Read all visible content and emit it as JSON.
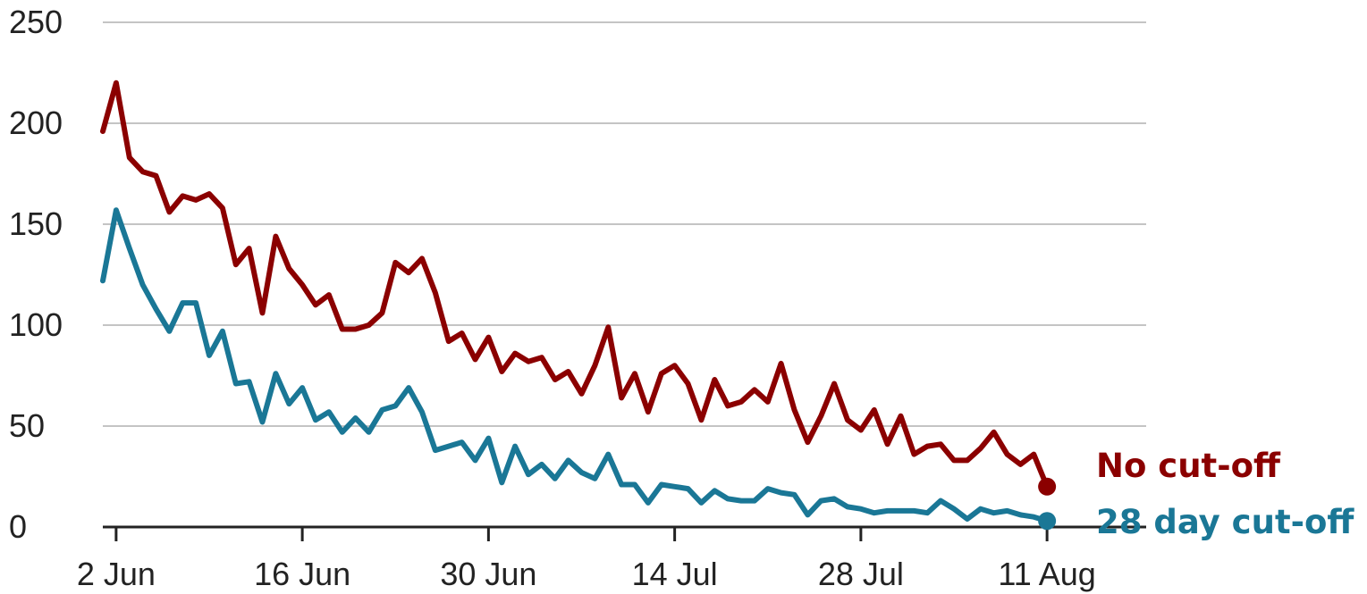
{
  "chart_data": {
    "type": "line",
    "title": "",
    "xlabel": "",
    "ylabel": "",
    "ylim": [
      0,
      250
    ],
    "yticks": [
      0,
      50,
      100,
      150,
      200,
      250
    ],
    "xticks": [
      {
        "label": "2 Jun",
        "x": 1
      },
      {
        "label": "16 Jun",
        "x": 15
      },
      {
        "label": "30 Jun",
        "x": 29
      },
      {
        "label": "14 Jul",
        "x": 43
      },
      {
        "label": "28 Jul",
        "x": 57
      },
      {
        "label": "11 Aug",
        "x": 71
      }
    ],
    "x_start_date": "1 Jun",
    "grid": true,
    "legend": "end-of-line labels",
    "series": [
      {
        "name": "No cut-off",
        "color": "#8b0000",
        "values": [
          196,
          220,
          183,
          176,
          174,
          156,
          164,
          162,
          165,
          158,
          130,
          138,
          106,
          144,
          128,
          120,
          110,
          115,
          98,
          98,
          100,
          106,
          131,
          126,
          133,
          116,
          92,
          96,
          83,
          94,
          77,
          86,
          82,
          84,
          73,
          77,
          66,
          80,
          99,
          64,
          76,
          57,
          76,
          80,
          71,
          53,
          73,
          60,
          62,
          68,
          62,
          81,
          58,
          42,
          55,
          71,
          53,
          48,
          58,
          41,
          55,
          36,
          40,
          41,
          33,
          33,
          39,
          47,
          36,
          31,
          36,
          20
        ]
      },
      {
        "name": "28 day cut-off",
        "color": "#1a7796",
        "values": [
          122,
          157,
          138,
          120,
          108,
          97,
          111,
          111,
          85,
          97,
          71,
          72,
          52,
          76,
          61,
          69,
          53,
          57,
          47,
          54,
          47,
          58,
          60,
          69,
          57,
          38,
          40,
          42,
          33,
          44,
          22,
          40,
          26,
          31,
          24,
          33,
          27,
          24,
          36,
          21,
          21,
          12,
          21,
          20,
          19,
          12,
          18,
          14,
          13,
          13,
          19,
          17,
          16,
          6,
          13,
          14,
          10,
          9,
          7,
          8,
          8,
          8,
          7,
          13,
          9,
          4,
          9,
          7,
          8,
          6,
          5,
          3
        ]
      }
    ]
  }
}
